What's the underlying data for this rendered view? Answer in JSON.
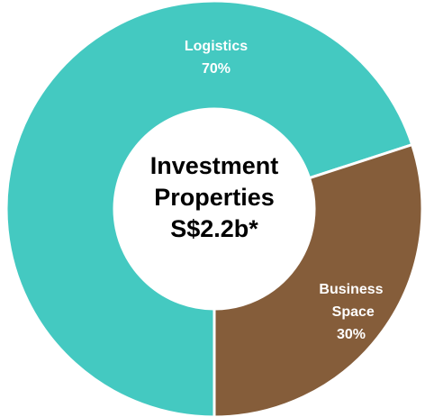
{
  "chart_data": {
    "type": "donut",
    "center_text": [
      "Investment",
      "Properties",
      "S$2.2b*"
    ],
    "categories": [
      "Logistics",
      "Business Space"
    ],
    "values": [
      70,
      30
    ],
    "value_labels": [
      "70%",
      "30%"
    ],
    "colors": [
      "#44c9c1",
      "#855d3a"
    ]
  }
}
